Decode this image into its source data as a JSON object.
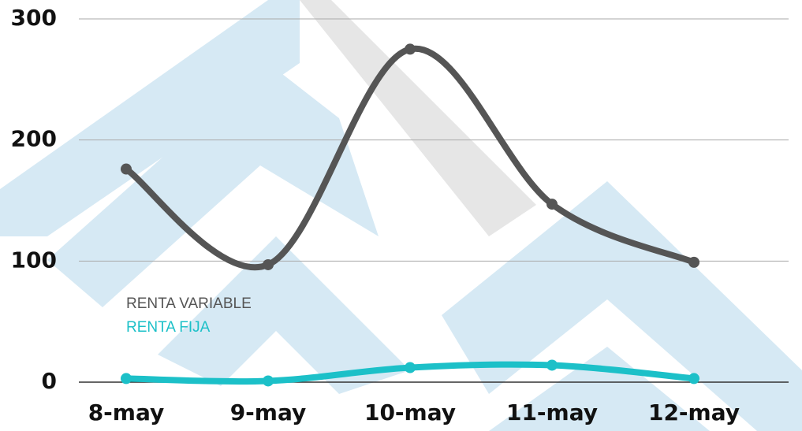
{
  "chart_data": {
    "type": "line",
    "categories": [
      "8-may",
      "9-may",
      "10-may",
      "11-may",
      "12-may"
    ],
    "series": [
      {
        "name": "RENTA VARIABLE",
        "color": "#555555",
        "values": [
          176,
          97,
          275,
          147,
          99
        ]
      },
      {
        "name": "RENTA FIJA",
        "color": "#1cc0c8",
        "values": [
          3,
          1,
          12,
          14,
          3
        ]
      }
    ],
    "ylim": [
      0,
      300
    ],
    "yticks": [
      0,
      100,
      200,
      300
    ],
    "grid": true,
    "smooth": true
  }
}
